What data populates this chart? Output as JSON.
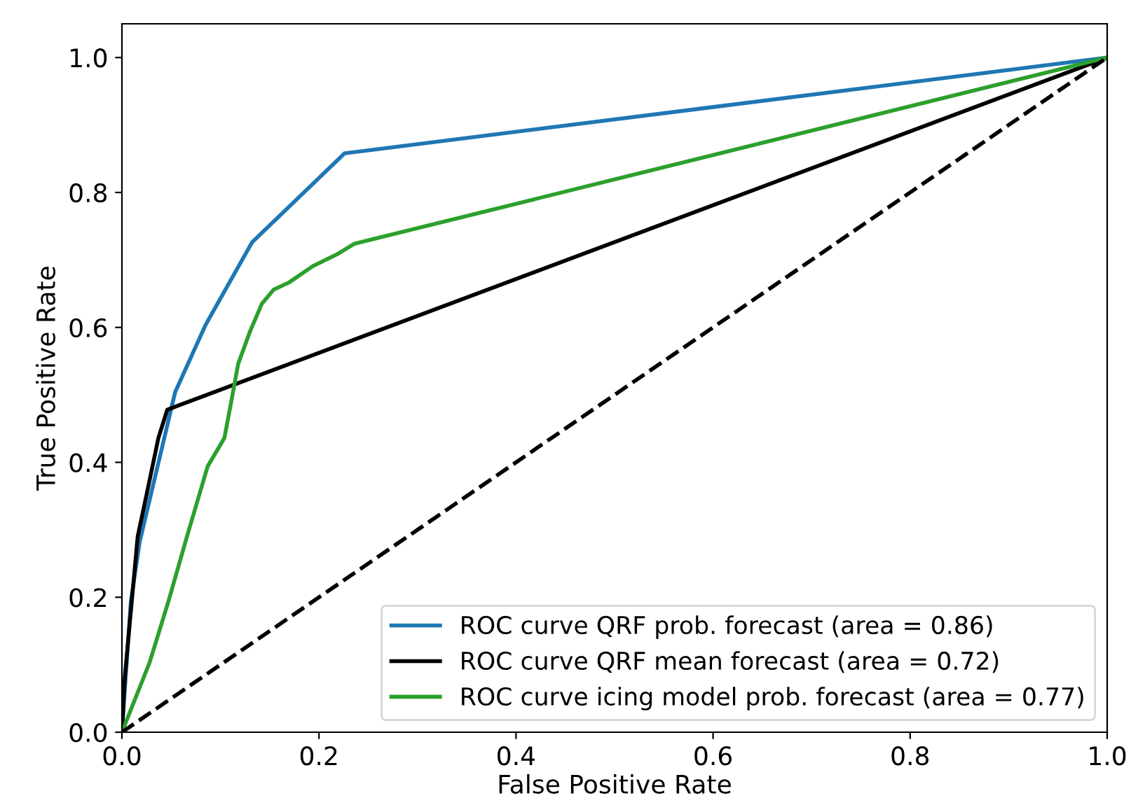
{
  "chart_data": {
    "type": "line",
    "xlabel": "False Positive Rate",
    "ylabel": "True Positive Rate",
    "xlim": [
      0,
      1
    ],
    "ylim": [
      0,
      1.05
    ],
    "xticks": [
      {
        "value": 0,
        "label": "0.0"
      },
      {
        "value": 0.2,
        "label": "0.2"
      },
      {
        "value": 0.4,
        "label": "0.4"
      },
      {
        "value": 0.6,
        "label": "0.6"
      },
      {
        "value": 0.8,
        "label": "0.8"
      },
      {
        "value": 1,
        "label": "1.0"
      }
    ],
    "yticks": [
      {
        "value": 0,
        "label": "0.0"
      },
      {
        "value": 0.2,
        "label": "0.2"
      },
      {
        "value": 0.4,
        "label": "0.4"
      },
      {
        "value": 0.6,
        "label": "0.6"
      },
      {
        "value": 0.8,
        "label": "0.8"
      },
      {
        "value": 1,
        "label": "1.0"
      }
    ],
    "grid": false,
    "legend": "bottom right",
    "marker": "none",
    "series": [
      {
        "name": "ROC curve QRF prob. forecast (area = 0.86)",
        "color": "#1f77b4",
        "x": [
          0,
          0.009,
          0.018,
          0.054,
          0.085,
          0.132,
          0.226,
          1
        ],
        "values": [
          0,
          0.193,
          0.282,
          0.504,
          0.604,
          0.726,
          0.858,
          1
        ]
      },
      {
        "name": "ROC curve QRF mean forecast (area = 0.72)",
        "color": "#000000",
        "x": [
          0,
          0.003,
          0.016,
          0.026,
          0.037,
          0.046,
          1
        ],
        "values": [
          0,
          0.083,
          0.29,
          0.359,
          0.436,
          0.478,
          1
        ]
      },
      {
        "name": "ROC curve icing model prob. forecast (area = 0.77)",
        "color": "#2ca02c",
        "x": [
          0,
          0.028,
          0.047,
          0.066,
          0.087,
          0.104,
          0.112,
          0.118,
          0.13,
          0.142,
          0.154,
          0.17,
          0.194,
          0.218,
          0.236,
          1
        ],
        "values": [
          0,
          0.103,
          0.193,
          0.29,
          0.394,
          0.436,
          0.498,
          0.546,
          0.594,
          0.635,
          0.656,
          0.667,
          0.691,
          0.708,
          0.724,
          1
        ]
      },
      {
        "color": "#000000",
        "line_style": "dashed",
        "x": [
          0,
          1
        ],
        "values": [
          0,
          1
        ]
      }
    ]
  }
}
